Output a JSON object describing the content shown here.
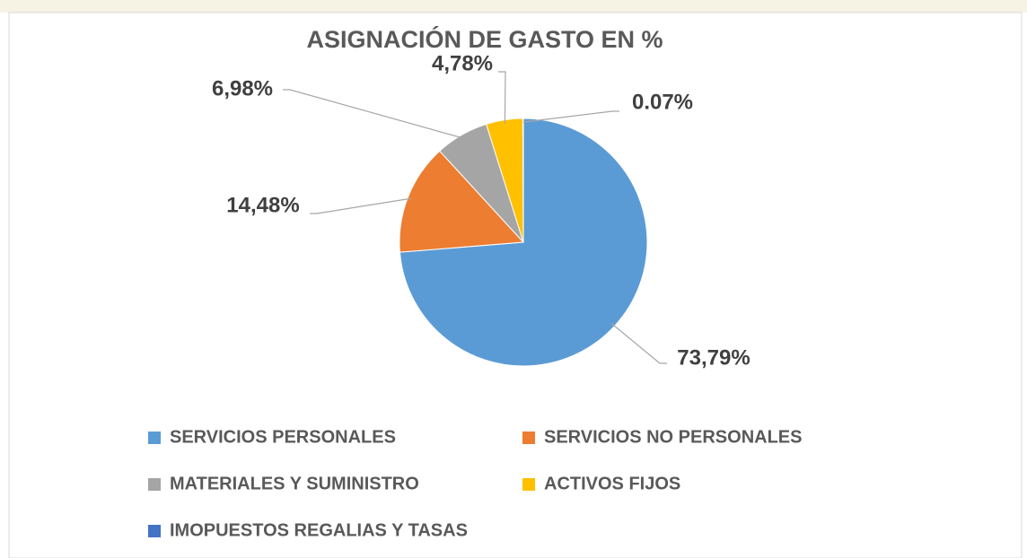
{
  "chart_data": {
    "type": "pie",
    "title": "ASIGNACIÓN DE GASTO EN %",
    "categories": [
      "SERVICIOS PERSONALES",
      "SERVICIOS NO PERSONALES",
      "MATERIALES Y SUMINISTRO",
      "ACTIVOS FIJOS",
      "IMOPUESTOS REGALIAS Y TASAS"
    ],
    "values": [
      73.79,
      14.48,
      6.98,
      4.78,
      0.07
    ],
    "value_labels": [
      "73,79%",
      "14,48%",
      "6,98%",
      "4,78%",
      "0.07%"
    ],
    "colors": [
      "#5b9bd5",
      "#ed7d31",
      "#a5a5a5",
      "#ffc000",
      "#4472c4"
    ]
  }
}
